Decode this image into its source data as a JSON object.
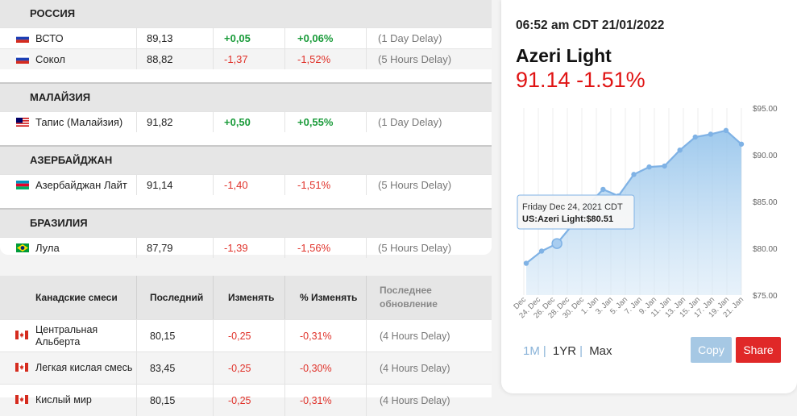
{
  "colors": {
    "positive": "#1a9b3a",
    "negative": "#e0322a",
    "accent": "#8bb4d9",
    "share": "#e02828",
    "price": "#e01414"
  },
  "sections": [
    {
      "title": "РОССИЯ",
      "rows": [
        {
          "flag": "russia-flag-icon",
          "name": "ВСТО",
          "last": "89,13",
          "change": "+0,05",
          "pct": "+0,06%",
          "update": "(1 Day Delay)",
          "dir": "pos"
        },
        {
          "flag": "russia-flag-icon",
          "name": "Сокол",
          "last": "88,82",
          "change": "-1,37",
          "pct": "-1,52%",
          "update": "(5 Hours Delay)",
          "dir": "neg"
        }
      ]
    },
    {
      "title": "МАЛАЙЗИЯ",
      "rows": [
        {
          "flag": "malaysia-flag-icon",
          "name": "Тапис (Малайзия)",
          "last": "91,82",
          "change": "+0,50",
          "pct": "+0,55%",
          "update": "(1 Day Delay)",
          "dir": "pos"
        }
      ]
    },
    {
      "title": "АЗЕРБАЙДЖАН",
      "rows": [
        {
          "flag": "azerbaijan-flag-icon",
          "name": "Азербайджан Лайт",
          "last": "91,14",
          "change": "-1,40",
          "pct": "-1,51%",
          "update": "(5 Hours Delay)",
          "dir": "neg"
        }
      ]
    },
    {
      "title": "БРАЗИЛИЯ",
      "rows": [
        {
          "flag": "brazil-flag-icon",
          "name": "Лула",
          "last": "87,79",
          "change": "-1,39",
          "pct": "-1,56%",
          "update": "(5 Hours Delay)",
          "dir": "neg"
        }
      ]
    }
  ],
  "canada": {
    "headers": {
      "name": "Канадские смеси",
      "last": "Последний",
      "change": "Изменять",
      "pct": "% Изменять",
      "update": "Последнее обновление"
    },
    "rows": [
      {
        "flag": "canada-flag-icon",
        "name": "Центральная Альберта",
        "last": "80,15",
        "change": "-0,25",
        "pct": "-0,31%",
        "update": "(4 Hours Delay)"
      },
      {
        "flag": "canada-flag-icon",
        "name": "Легкая кислая смесь",
        "last": "83,45",
        "change": "-0,25",
        "pct": "-0,30%",
        "update": "(4 Hours Delay)"
      },
      {
        "flag": "canada-flag-icon",
        "name": "Кислый мир",
        "last": "80,15",
        "change": "-0,25",
        "pct": "-0,31%",
        "update": "(4 Hours Delay)"
      }
    ]
  },
  "quote": {
    "timestamp": "06:52 am CDT 21/01/2022",
    "name": "Azeri Light",
    "price": "91.14 -1.51%",
    "tooltip_date": "Friday Dec 24, 2021 CDT",
    "tooltip_value": "US:Azeri Light:$80.51",
    "ranges": [
      "1M",
      "1YR",
      "Max"
    ],
    "active_range": "1M",
    "copy_label": "Copy",
    "share_label": "Share"
  },
  "chart_data": {
    "type": "area",
    "x": [
      "22. Dec",
      "23. Dec",
      "24. Dec",
      "29. Dec",
      "3. Jan",
      "7. Jan",
      "11. Jan",
      "12. Jan",
      "13. Jan",
      "14. Jan",
      "17. Jan",
      "18. Jan",
      "19. Jan",
      "20. Jan",
      "21. Jan"
    ],
    "values": [
      78.4,
      79.7,
      80.51,
      82.5,
      84.6,
      86.3,
      85.6,
      87.9,
      88.7,
      88.8,
      90.5,
      91.9,
      92.2,
      92.6,
      91.14
    ],
    "tick_labels": [
      "Dec",
      "24. Dec",
      "26. Dec",
      "28. Dec",
      "30. Dec",
      "1. Jan",
      "3. Jan",
      "5. Jan",
      "7. Jan",
      "9. Jan",
      "11. Jan",
      "13. Jan",
      "15. Jan",
      "17. Jan",
      "19. Jan",
      "21. Jan"
    ],
    "y_ticks": [
      "$95.00",
      "$90.00",
      "$85.00",
      "$80.00",
      "$75.00"
    ],
    "ylim": [
      75,
      95
    ],
    "grid": true,
    "highlight_index": 2
  }
}
